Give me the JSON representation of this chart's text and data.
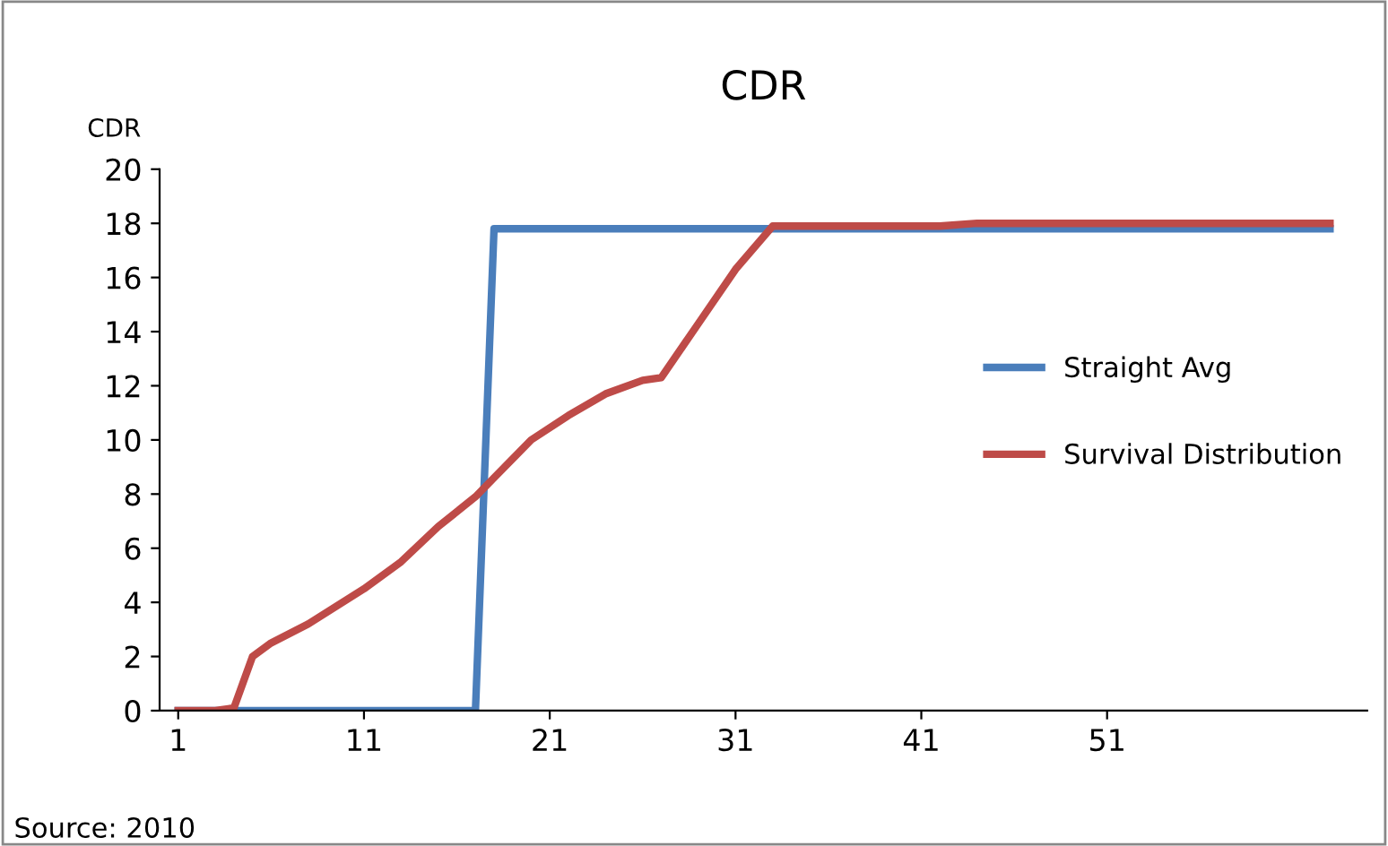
{
  "chart_data": {
    "type": "line",
    "title": "CDR",
    "ylabel": "CDR",
    "x": [
      1,
      2,
      3,
      4,
      5,
      6,
      8,
      11,
      13,
      15,
      17,
      18,
      20,
      22,
      24,
      26,
      27,
      29,
      31,
      33,
      42,
      44,
      63
    ],
    "series": [
      {
        "name": "Straight Avg",
        "color": "#4a7ebb",
        "x": [
          1,
          17,
          18,
          63
        ],
        "values": [
          0,
          0,
          17.8,
          17.8
        ]
      },
      {
        "name": "Survival Distribution",
        "color": "#be4b48",
        "values": [
          0,
          0,
          0,
          0.1,
          2.0,
          2.5,
          3.2,
          4.5,
          5.5,
          6.8,
          7.9,
          8.6,
          10.0,
          10.9,
          11.7,
          12.2,
          12.3,
          14.3,
          16.3,
          17.9,
          17.9,
          18.0,
          18.0
        ]
      }
    ],
    "xlim": [
      0,
      65
    ],
    "xticks": [
      1,
      11,
      21,
      31,
      41,
      51
    ],
    "ylim": [
      0,
      20
    ],
    "yticks": [
      0,
      2,
      4,
      6,
      8,
      10,
      12,
      14,
      16,
      18,
      20
    ],
    "grid": false,
    "legend": "right",
    "marker": "none",
    "line_style": "solid",
    "annotations": [
      "Source: 2010"
    ]
  }
}
